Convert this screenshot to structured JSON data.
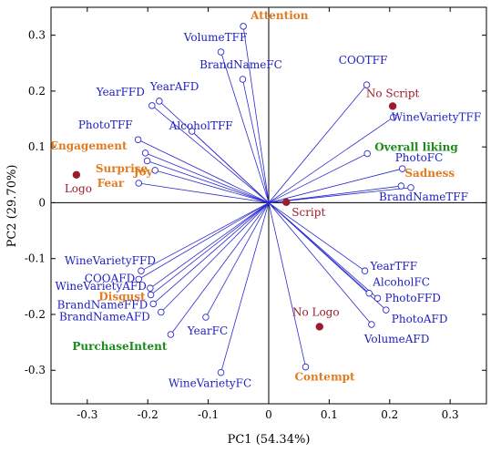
{
  "chart_data": {
    "type": "scatter",
    "title": "",
    "xlabel": "PC1 (54.34%)",
    "ylabel": "PC2 (29.70%)",
    "xlim": [
      -0.36,
      0.36
    ],
    "ylim": [
      -0.36,
      0.35
    ],
    "xticks": [
      -0.3,
      -0.2,
      -0.1,
      0,
      0.1,
      0.2,
      0.3
    ],
    "yticks": [
      -0.3,
      -0.2,
      -0.1,
      0,
      0.1,
      0.2,
      0.3
    ],
    "xtick_labels": [
      "-0.3",
      "-0.2",
      "-0.1",
      "0",
      "0.1",
      "0.2",
      "0.3"
    ],
    "ytick_labels": [
      "-0.3",
      "-0.2",
      "-0.1",
      "0",
      "0.1",
      "0.2",
      "0.3"
    ],
    "grid": false,
    "colors": {
      "vector": "#2b2bd0",
      "variable_label": "#2020c0",
      "emotion_label": "#e07b20",
      "liking_label": "#1a8a1a",
      "sample": "#9b1c2c"
    },
    "variables": [
      {
        "label": "VolumeTFF",
        "x": -0.079,
        "y": 0.27,
        "anchor": "middle",
        "dx": -6,
        "dy": -12
      },
      {
        "label": "BrandNameFC",
        "x": -0.043,
        "y": 0.221,
        "anchor": "middle",
        "dx": -2,
        "dy": -12
      },
      {
        "label": "YearFFD",
        "x": -0.193,
        "y": 0.174,
        "anchor": "end",
        "dx": -8,
        "dy": -11
      },
      {
        "label": "YearAFD",
        "x": -0.181,
        "y": 0.182,
        "anchor": "start",
        "dx": -10,
        "dy": -12
      },
      {
        "label": "AlcoholTFF",
        "x": -0.127,
        "y": 0.128,
        "anchor": "middle",
        "dx": 10,
        "dy": -2
      },
      {
        "label": "PhotoTFF",
        "x": -0.216,
        "y": 0.113,
        "anchor": "end",
        "dx": -6,
        "dy": -12
      },
      {
        "label": "COOTFF",
        "x": 0.162,
        "y": 0.211,
        "anchor": "middle",
        "dx": -4,
        "dy": -23
      },
      {
        "label": "WineVarietyTFF",
        "x": 0.206,
        "y": 0.153,
        "anchor": "start",
        "dx": -2,
        "dy": 4
      },
      {
        "label": "PhotoFC",
        "x": 0.221,
        "y": 0.061,
        "anchor": "start",
        "dx": -8,
        "dy": -8
      },
      {
        "label": "BrandNameTFF",
        "x": 0.235,
        "y": 0.027,
        "anchor": "middle",
        "dx": 14,
        "dy": 14
      },
      {
        "label": "WineVarietyFFD",
        "x": -0.211,
        "y": -0.122,
        "anchor": "middle",
        "dx": -34,
        "dy": -7
      },
      {
        "label": "COOAFD",
        "x": -0.215,
        "y": -0.137,
        "anchor": "end",
        "dx": -4,
        "dy": 3
      },
      {
        "label": "WineVarietyAFD",
        "x": -0.196,
        "y": -0.153,
        "anchor": "end",
        "dx": -4,
        "dy": 2
      },
      {
        "label": "BrandNameFFD",
        "x": -0.191,
        "y": -0.181,
        "anchor": "end",
        "dx": -6,
        "dy": 5
      },
      {
        "label": "BrandNameAFD",
        "x": -0.178,
        "y": -0.196,
        "anchor": "end",
        "dx": -12,
        "dy": 9
      },
      {
        "label": "YearFC",
        "x": -0.104,
        "y": -0.205,
        "anchor": "middle",
        "dx": 2,
        "dy": 19
      },
      {
        "label": "WineVarietyFC",
        "x": -0.079,
        "y": -0.304,
        "anchor": "middle",
        "dx": -12,
        "dy": 16
      },
      {
        "label": "YearTFF",
        "x": 0.159,
        "y": -0.122,
        "anchor": "start",
        "dx": 6,
        "dy": -1
      },
      {
        "label": "AlcoholFC",
        "x": 0.166,
        "y": -0.162,
        "anchor": "start",
        "dx": 4,
        "dy": -8
      },
      {
        "label": "PhotoFFD",
        "x": 0.18,
        "y": -0.171,
        "anchor": "start",
        "dx": 8,
        "dy": 4
      },
      {
        "label": "PhotoAFD",
        "x": 0.194,
        "y": -0.192,
        "anchor": "start",
        "dx": 6,
        "dy": 14
      },
      {
        "label": "VolumeAFD",
        "x": 0.17,
        "y": -0.218,
        "anchor": "start",
        "dx": -8,
        "dy": 20
      }
    ],
    "emotions": [
      {
        "label": "Attention",
        "x": -0.042,
        "y": 0.316,
        "anchor": "start",
        "dx": 8,
        "dy": -8
      },
      {
        "label": "Engagement",
        "x": -0.204,
        "y": 0.089,
        "anchor": "end",
        "dx": -20,
        "dy": -4
      },
      {
        "label": "Joy",
        "x": -0.201,
        "y": 0.075,
        "anchor": "end",
        "dx": 6,
        "dy": 16
      },
      {
        "label": "Surprise",
        "x": -0.188,
        "y": 0.058,
        "anchor": "end",
        "dx": -8,
        "dy": 2
      },
      {
        "label": "Fear",
        "x": -0.215,
        "y": 0.035,
        "anchor": "end",
        "dx": -16,
        "dy": 4
      },
      {
        "label": "Disgust",
        "x": -0.195,
        "y": -0.165,
        "anchor": "end",
        "dx": -6,
        "dy": 6
      },
      {
        "label": "Sadness",
        "x": 0.219,
        "y": 0.03,
        "anchor": "start",
        "dx": 4,
        "dy": -10
      },
      {
        "label": "Contempt",
        "x": 0.061,
        "y": -0.294,
        "anchor": "start",
        "dx": -12,
        "dy": 15
      }
    ],
    "liking": [
      {
        "label": "Overall liking",
        "x": 0.163,
        "y": 0.088,
        "anchor": "start",
        "dx": 8,
        "dy": -3
      },
      {
        "label": "PurchaseIntent",
        "x": -0.162,
        "y": -0.236,
        "anchor": "end",
        "dx": -4,
        "dy": 17
      }
    ],
    "samples": [
      {
        "label": "Logo",
        "x": -0.318,
        "y": 0.05,
        "anchor": "middle",
        "dx": 2,
        "dy": 19
      },
      {
        "label": "No Script",
        "x": 0.205,
        "y": 0.173,
        "anchor": "middle",
        "dx": 0,
        "dy": -10
      },
      {
        "label": "Script",
        "x": 0.029,
        "y": 0.001,
        "anchor": "start",
        "dx": 6,
        "dy": 15
      },
      {
        "label": "No Logo",
        "x": 0.084,
        "y": -0.222,
        "anchor": "middle",
        "dx": -4,
        "dy": -12
      }
    ]
  }
}
